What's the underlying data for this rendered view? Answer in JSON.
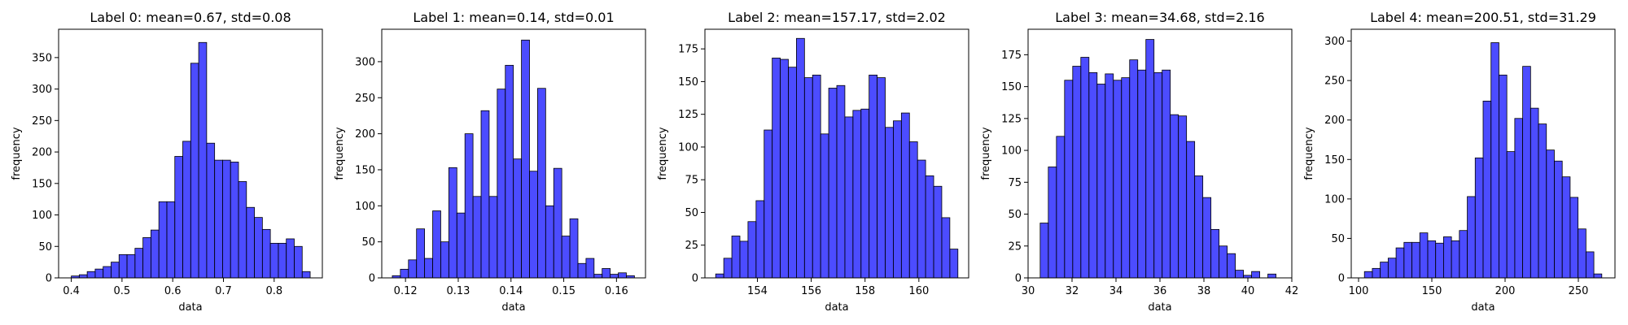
{
  "chart_data": [
    {
      "type": "bar",
      "title": "Label 0: mean=0.67, std=0.08",
      "xlabel": "data",
      "ylabel": "frequency",
      "xlim": [
        0.375,
        0.895
      ],
      "ylim": [
        0,
        395
      ],
      "xticks": [
        0.4,
        0.5,
        0.6,
        0.7,
        0.8
      ],
      "xtick_labels": [
        "0.4",
        "0.5",
        "0.6",
        "0.7",
        "0.8"
      ],
      "yticks": [
        0,
        50,
        100,
        150,
        200,
        250,
        300,
        350
      ],
      "bin_start": 0.4,
      "bin_width": 0.0157,
      "values": [
        3,
        5,
        10,
        14,
        18,
        25,
        37,
        37,
        47,
        64,
        76,
        121,
        121,
        193,
        217,
        341,
        374,
        214,
        187,
        187,
        184,
        153,
        112,
        96,
        77,
        55,
        55,
        62,
        50,
        10
      ],
      "color": "#0000ff"
    },
    {
      "type": "bar",
      "title": "Label 1: mean=0.14, std=0.01",
      "xlabel": "data",
      "ylabel": "frequency",
      "xlim": [
        0.1155,
        0.1655
      ],
      "ylim": [
        0,
        345
      ],
      "xticks": [
        0.12,
        0.13,
        0.14,
        0.15,
        0.16
      ],
      "xtick_labels": [
        "0.12",
        "0.13",
        "0.14",
        "0.15",
        "0.16"
      ],
      "yticks": [
        0,
        50,
        100,
        150,
        200,
        250,
        300
      ],
      "bin_start": 0.1175,
      "bin_width": 0.00153,
      "values": [
        3,
        12,
        25,
        68,
        27,
        93,
        50,
        153,
        90,
        200,
        113,
        232,
        113,
        262,
        295,
        165,
        330,
        148,
        263,
        100,
        152,
        58,
        82,
        20,
        27,
        5,
        13,
        5,
        7,
        3
      ],
      "color": "#0000ff"
    },
    {
      "type": "bar",
      "title": "Label 2: mean=157.17, std=2.02",
      "xlabel": "data",
      "ylabel": "frequency",
      "xlim": [
        152.05,
        161.85
      ],
      "ylim": [
        0,
        190
      ],
      "xticks": [
        154,
        156,
        158,
        160
      ],
      "xtick_labels": [
        "154",
        "156",
        "158",
        "160"
      ],
      "yticks": [
        0,
        25,
        50,
        75,
        100,
        125,
        150,
        175
      ],
      "bin_start": 152.45,
      "bin_width": 0.3,
      "values": [
        3,
        15,
        32,
        28,
        43,
        59,
        113,
        168,
        167,
        161,
        183,
        153,
        155,
        110,
        145,
        147,
        123,
        128,
        129,
        155,
        153,
        115,
        120,
        126,
        104,
        90,
        78,
        70,
        46,
        22
      ],
      "color": "#0000ff"
    },
    {
      "type": "bar",
      "title": "Label 3: mean=34.68, std=2.16",
      "xlabel": "data",
      "ylabel": "frequency",
      "xlim": [
        30.0,
        42.0
      ],
      "ylim": [
        0,
        195
      ],
      "xticks": [
        30,
        32,
        34,
        36,
        38,
        40,
        42
      ],
      "xtick_labels": [
        "30",
        "32",
        "34",
        "36",
        "38",
        "40",
        "42"
      ],
      "yticks": [
        0,
        25,
        50,
        75,
        100,
        125,
        150,
        175
      ],
      "bin_start": 30.55,
      "bin_width": 0.37,
      "values": [
        43,
        87,
        111,
        155,
        166,
        173,
        161,
        152,
        160,
        155,
        157,
        171,
        163,
        187,
        161,
        163,
        128,
        127,
        107,
        80,
        63,
        38,
        25,
        19,
        6,
        2,
        5,
        0,
        3,
        0
      ],
      "color": "#0000ff"
    },
    {
      "type": "bar",
      "title": "Label 4: mean=200.51, std=31.29",
      "xlabel": "data",
      "ylabel": "frequency",
      "xlim": [
        95,
        275
      ],
      "ylim": [
        0,
        315
      ],
      "xticks": [
        100,
        150,
        200,
        250
      ],
      "xtick_labels": [
        "100",
        "150",
        "200",
        "250"
      ],
      "yticks": [
        0,
        50,
        100,
        150,
        200,
        250,
        300
      ],
      "bin_start": 104,
      "bin_width": 5.4,
      "values": [
        8,
        12,
        20,
        25,
        38,
        45,
        45,
        57,
        47,
        44,
        52,
        47,
        60,
        103,
        152,
        224,
        298,
        257,
        160,
        202,
        268,
        215,
        195,
        162,
        148,
        128,
        102,
        62,
        33,
        5
      ],
      "color": "#0000ff"
    }
  ]
}
